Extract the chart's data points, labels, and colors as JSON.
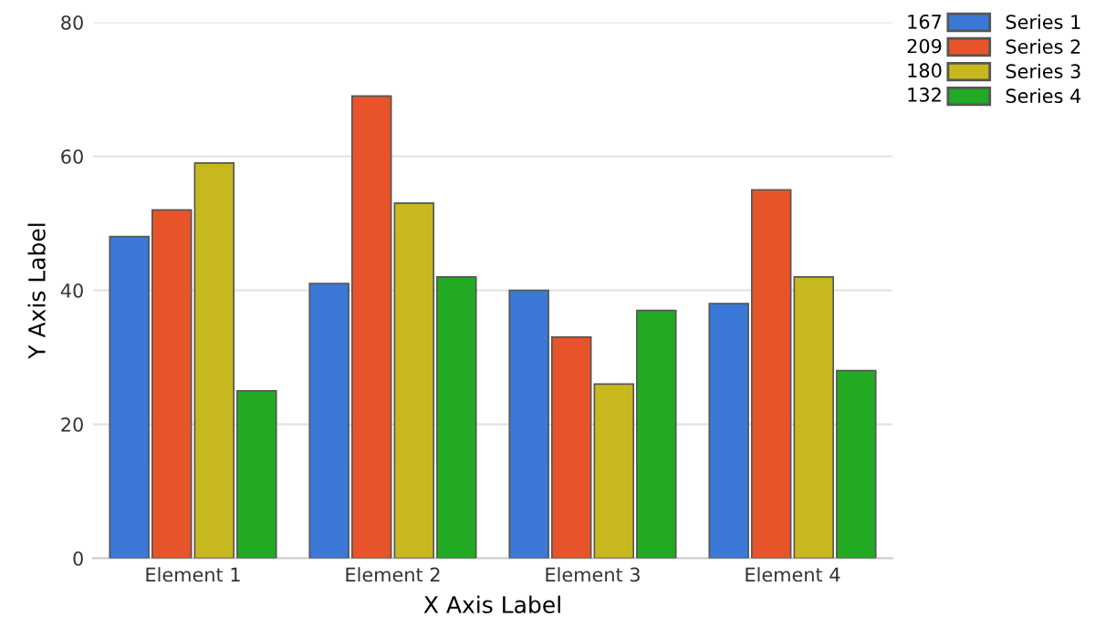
{
  "chart_data": {
    "type": "bar",
    "xlabel": "X Axis Label",
    "ylabel": "Y Axis Label",
    "categories": [
      "Element 1",
      "Element 2",
      "Element 3",
      "Element 4"
    ],
    "series": [
      {
        "name": "Series 1",
        "color": "#3b78d8",
        "values": [
          48,
          41,
          40,
          38
        ]
      },
      {
        "name": "Series 2",
        "color": "#e8542a",
        "values": [
          52,
          69,
          33,
          55
        ]
      },
      {
        "name": "Series 3",
        "color": "#c8b820",
        "values": [
          59,
          53,
          26,
          42
        ]
      },
      {
        "name": "Series 4",
        "color": "#22aa22",
        "values": [
          25,
          42,
          37,
          28
        ]
      }
    ],
    "annotations": [
      "167",
      "209",
      "180",
      "132"
    ],
    "ylim": [
      0,
      80
    ],
    "yticks": [
      0,
      20,
      40,
      60,
      80
    ],
    "grid": "y",
    "legend": "top right"
  }
}
